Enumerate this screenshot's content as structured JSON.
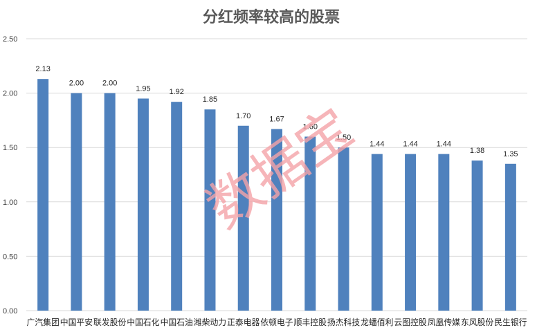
{
  "chart_data": {
    "type": "bar",
    "title": "分红频率较高的股票",
    "categories": [
      "广汽集团",
      "中国平安",
      "联发股份",
      "中国石化",
      "中国石油",
      "潍柴动力",
      "正泰电器",
      "依顿电子",
      "顺丰控股",
      "扬杰科技",
      "龙蟠",
      "佰利云图",
      "控股凤凰",
      "传媒东风",
      "股份民生银行"
    ],
    "display_categories": [
      "广汽集团",
      "中国平安",
      "联发股份",
      "中国石化",
      "中国石油",
      "潍柴动力",
      "正泰电器",
      "依顿电子",
      "顺丰控股",
      "扬杰科技",
      "龙蟠佰利",
      "云图控股",
      "凤凰传媒",
      "东风股份",
      "民生银行"
    ],
    "values": [
      2.13,
      2.0,
      2.0,
      1.95,
      1.92,
      1.85,
      1.7,
      1.67,
      1.6,
      1.5,
      1.44,
      1.44,
      1.44,
      1.38,
      1.35
    ],
    "value_labels": [
      "2.13",
      "2.00",
      "2.00",
      "1.95",
      "1.92",
      "1.85",
      "1.70",
      "1.67",
      "1.60",
      "1.50",
      "1.44",
      "1.44",
      "1.44",
      "1.38",
      "1.35"
    ],
    "yticks": [
      "0.00",
      "0.50",
      "1.00",
      "1.50",
      "2.00",
      "2.50"
    ],
    "ylim": [
      0,
      2.5
    ],
    "xlabel": "",
    "ylabel": "",
    "grid": true,
    "legend": "none",
    "bar_color": "#4f81bd"
  },
  "watermark": "数据宝"
}
